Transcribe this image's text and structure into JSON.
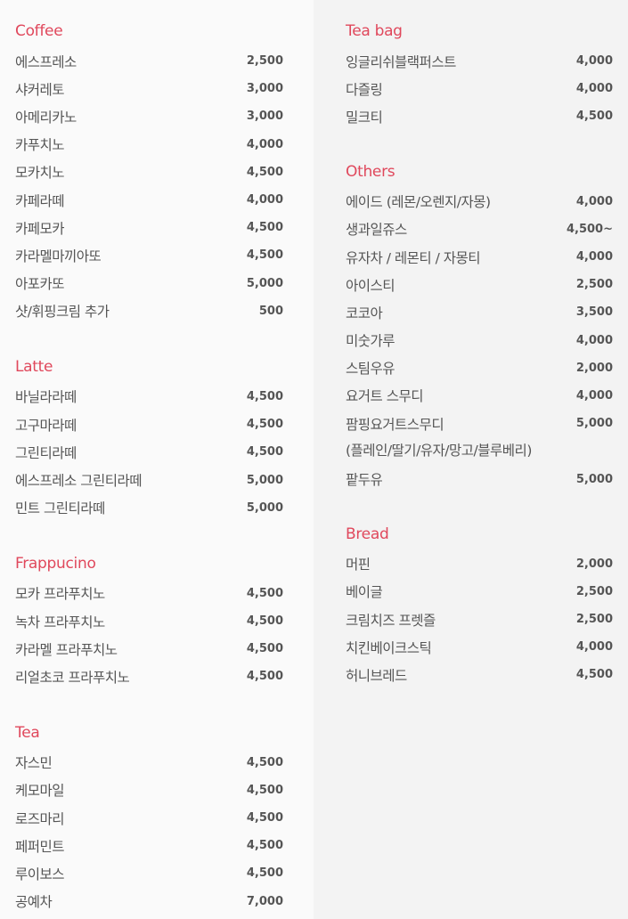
{
  "left": [
    {
      "title": "Coffee",
      "items": [
        {
          "name": "에스프레소",
          "price": "2,500"
        },
        {
          "name": "샤커레토",
          "price": "3,000"
        },
        {
          "name": "아메리카노",
          "price": "3,000"
        },
        {
          "name": "카푸치노",
          "price": "4,000"
        },
        {
          "name": "모카치노",
          "price": "4,500"
        },
        {
          "name": "카페라떼",
          "price": "4,000"
        },
        {
          "name": "카페모카",
          "price": "4,500"
        },
        {
          "name": "카라멜마끼아또",
          "price": "4,500"
        },
        {
          "name": "아포카또",
          "price": "5,000"
        },
        {
          "name": "샷/휘핑크림 추가",
          "price": "500"
        }
      ]
    },
    {
      "title": "Latte",
      "items": [
        {
          "name": "바닐라라떼",
          "price": "4,500"
        },
        {
          "name": "고구마라떼",
          "price": "4,500"
        },
        {
          "name": "그린티라떼",
          "price": "4,500"
        },
        {
          "name": "에스프레소 그린티라떼",
          "price": "5,000"
        },
        {
          "name": "민트 그린티라떼",
          "price": "5,000"
        }
      ]
    },
    {
      "title": "Frappucino",
      "items": [
        {
          "name": "모카 프라푸치노",
          "price": "4,500"
        },
        {
          "name": "녹차 프라푸치노",
          "price": "4,500"
        },
        {
          "name": "카라멜 프라푸치노",
          "price": "4,500"
        },
        {
          "name": "리얼초코 프라푸치노",
          "price": "4,500"
        }
      ]
    },
    {
      "title": "Tea",
      "items": [
        {
          "name": "자스민",
          "price": "4,500"
        },
        {
          "name": "케모마일",
          "price": "4,500"
        },
        {
          "name": "로즈마리",
          "price": "4,500"
        },
        {
          "name": "페퍼민트",
          "price": "4,500"
        },
        {
          "name": "루이보스",
          "price": "4,500"
        },
        {
          "name": "공예차",
          "price": "7,000"
        }
      ]
    }
  ],
  "right": [
    {
      "title": "Tea bag",
      "items": [
        {
          "name": "잉글리쉬블랙퍼스트",
          "price": "4,000"
        },
        {
          "name": "다즐링",
          "price": "4,000"
        },
        {
          "name": "밀크티",
          "price": "4,500"
        }
      ]
    },
    {
      "title": "Others",
      "items": [
        {
          "name": "에이드 (레몬/오렌지/자몽)",
          "price": "4,000"
        },
        {
          "name": "생과일쥬스",
          "price": "4,500~"
        },
        {
          "name": "유자차 / 레몬티 / 자몽티",
          "price": "4,000"
        },
        {
          "name": "아이스티",
          "price": "2,500"
        },
        {
          "name": "코코아",
          "price": "3,500"
        },
        {
          "name": "미숫가루",
          "price": "4,000"
        },
        {
          "name": "스팀우유",
          "price": "2,000"
        },
        {
          "name": "요거트 스무디",
          "price": "4,000"
        },
        {
          "name": "팜핑요거트스무디",
          "price": "5,000"
        },
        {
          "name": "(플레인/딸기/유자/망고/블루베리)",
          "price": ""
        },
        {
          "name": "팥두유",
          "price": "5,000"
        }
      ]
    },
    {
      "title": "Bread",
      "items": [
        {
          "name": "머핀",
          "price": "2,000"
        },
        {
          "name": "베이글",
          "price": "2,500"
        },
        {
          "name": "크림치즈 프렛즐",
          "price": "2,500"
        },
        {
          "name": "치킨베이크스틱",
          "price": "4,000"
        },
        {
          "name": "허니브레드",
          "price": "4,500"
        }
      ]
    }
  ],
  "colors": {
    "accent": "#e0485c",
    "text": "#555555",
    "left_bg": "#fafafa",
    "right_bg": "#f3f3f3"
  }
}
